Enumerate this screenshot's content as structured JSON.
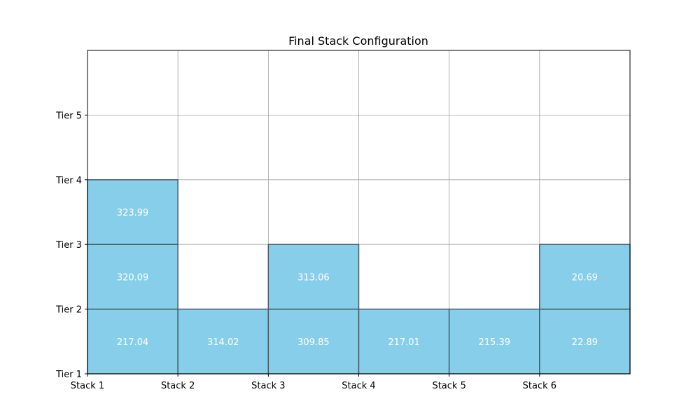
{
  "chart_data": {
    "type": "stacked-grid",
    "title": "Final Stack Configuration",
    "x_tick_labels": [
      "Stack 1",
      "Stack 2",
      "Stack 3",
      "Stack 4",
      "Stack 5",
      "Stack 6"
    ],
    "y_tick_labels": [
      "Tier 1",
      "Tier 2",
      "Tier 3",
      "Tier 4",
      "Tier 5"
    ],
    "xlim": [
      0,
      6
    ],
    "ylim": [
      0,
      5
    ],
    "grid": true,
    "stacks": [
      {
        "stack": "Stack 1",
        "items": [
          217.04,
          320.09,
          323.99
        ]
      },
      {
        "stack": "Stack 2",
        "items": [
          314.02
        ]
      },
      {
        "stack": "Stack 3",
        "items": [
          309.85,
          313.06
        ]
      },
      {
        "stack": "Stack 4",
        "items": [
          217.01
        ]
      },
      {
        "stack": "Stack 5",
        "items": [
          215.39
        ]
      },
      {
        "stack": "Stack 6",
        "items": [
          22.89,
          20.69
        ]
      }
    ],
    "colors": {
      "box_fill": "#87ceeb",
      "box_edge": "#4a5b66",
      "grid": "#a0a0a0",
      "label": "#ffffff"
    }
  }
}
